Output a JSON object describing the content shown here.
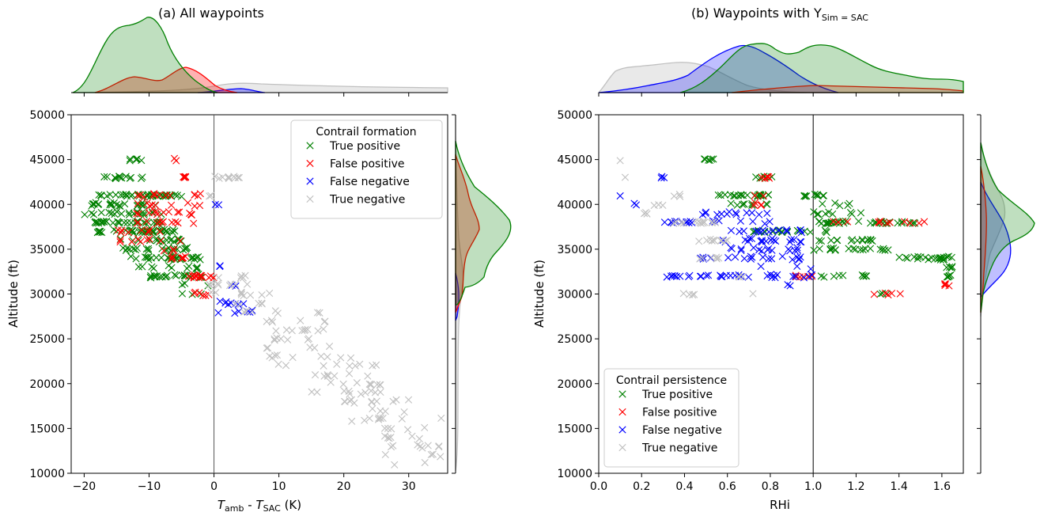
{
  "chart_data": [
    {
      "id": "a",
      "type": "scatter",
      "title": "(a) All waypoints",
      "xlabel_T": "T",
      "xlabel_sub1": "amb",
      "xlabel_mid": " - ",
      "xlabel_sub2": "SAC",
      "xlabel_unit": " (K)",
      "ylabel": "Altitude (ft)",
      "xlim": [
        -22,
        36
      ],
      "ylim": [
        10000,
        50000
      ],
      "xticks": [
        -20,
        -10,
        0,
        10,
        20,
        30
      ],
      "xtick_labels": [
        "−20",
        "−10",
        "0",
        "10",
        "20",
        "30"
      ],
      "yticks": [
        10000,
        15000,
        20000,
        25000,
        30000,
        35000,
        40000,
        45000,
        50000
      ],
      "ytick_labels": [
        "10000",
        "15000",
        "20000",
        "25000",
        "30000",
        "35000",
        "40000",
        "45000",
        "50000"
      ],
      "vline_x": 0,
      "legend": {
        "title": "Contrail formation",
        "placement": "top-right",
        "entries": [
          "True positive",
          "False positive",
          "False negative",
          "True negative"
        ]
      },
      "series_colors": [
        "#008000",
        "#ff0000",
        "#0000ff",
        "#c0c0c0"
      ],
      "clusters": {
        "tp": [
          [
            -13,
            -11,
            45000,
            45000,
            6
          ],
          [
            -17,
            -11,
            43000,
            43000,
            14
          ],
          [
            -19,
            -5,
            41000,
            41000,
            40
          ],
          [
            -20,
            -8,
            39000,
            40000,
            45
          ],
          [
            -19,
            -7,
            38000,
            38000,
            30
          ],
          [
            -18,
            -6,
            36500,
            37000,
            40
          ],
          [
            -15,
            -4,
            35000,
            36000,
            40
          ],
          [
            -13,
            -2,
            33000,
            34500,
            40
          ],
          [
            -11,
            -1,
            32000,
            32500,
            25
          ],
          [
            -5,
            0,
            30000,
            31000,
            6
          ]
        ],
        "fp": [
          [
            -6.5,
            -5,
            45000,
            45000,
            2
          ],
          [
            -5,
            -4,
            43000,
            43000,
            6
          ],
          [
            -12,
            -2,
            40000,
            41000,
            22
          ],
          [
            -12,
            -3,
            38000,
            39000,
            25
          ],
          [
            -15,
            -3,
            36000,
            37000,
            18
          ],
          [
            -8,
            -4,
            34000,
            35000,
            10
          ],
          [
            -4,
            0,
            32000,
            32500,
            14
          ],
          [
            -4,
            0,
            30000,
            30500,
            6
          ]
        ],
        "fn": [
          [
            0,
            1,
            40000,
            40000,
            2
          ],
          [
            0.5,
            2,
            32500,
            33000,
            2
          ],
          [
            0.5,
            6,
            28000,
            31000,
            16
          ]
        ],
        "tn": [
          [
            -1,
            0,
            40000,
            41000,
            2
          ],
          [
            0,
            4,
            43000,
            43000,
            10
          ],
          [
            -1,
            6,
            30000,
            32000,
            20
          ],
          [
            3,
            10,
            27000,
            30000,
            15
          ],
          [
            8,
            18,
            22000,
            28000,
            35
          ],
          [
            15,
            25,
            18000,
            23000,
            30
          ],
          [
            20,
            30,
            15000,
            20000,
            30
          ],
          [
            25,
            35,
            11000,
            16000,
            25
          ]
        ]
      }
    },
    {
      "id": "b",
      "type": "scatter",
      "title_main": "(b) Waypoints with Y",
      "title_sub": "Sim = SAC",
      "xlabel": "RHi",
      "ylabel": "Altitude (ft)",
      "xlim": [
        0.0,
        1.7
      ],
      "ylim": [
        10000,
        50000
      ],
      "xticks": [
        0.0,
        0.2,
        0.4,
        0.6,
        0.8,
        1.0,
        1.2,
        1.4,
        1.6
      ],
      "xtick_labels": [
        "0.0",
        "0.2",
        "0.4",
        "0.6",
        "0.8",
        "1.0",
        "1.2",
        "1.4",
        "1.6"
      ],
      "yticks": [
        10000,
        15000,
        20000,
        25000,
        30000,
        35000,
        40000,
        45000,
        50000
      ],
      "ytick_labels": [
        "10000",
        "15000",
        "20000",
        "25000",
        "30000",
        "35000",
        "40000",
        "45000",
        "50000"
      ],
      "vline_x": 1.0,
      "legend": {
        "title": "Contrail persistence",
        "placement": "lower-left",
        "entries": [
          "True positive",
          "False positive",
          "False negative",
          "True negative"
        ]
      },
      "series_colors": [
        "#008000",
        "#ff0000",
        "#0000ff",
        "#c0c0c0"
      ],
      "clusters": {
        "tp": [
          [
            0.48,
            0.55,
            45000,
            45000,
            6
          ],
          [
            0.72,
            0.84,
            43000,
            43000,
            6
          ],
          [
            0.55,
            0.82,
            41000,
            41000,
            22
          ],
          [
            0.6,
            0.8,
            40000,
            40000,
            10
          ],
          [
            0.95,
            1.05,
            41000,
            41000,
            10
          ],
          [
            1.0,
            1.25,
            39000,
            40000,
            14
          ],
          [
            1.0,
            1.5,
            38000,
            38000,
            35
          ],
          [
            0.7,
            1.1,
            37000,
            37000,
            20
          ],
          [
            1.0,
            1.3,
            36000,
            36000,
            15
          ],
          [
            1.0,
            1.35,
            35000,
            35000,
            20
          ],
          [
            1.38,
            1.65,
            34000,
            34500,
            22
          ],
          [
            1.62,
            1.65,
            32000,
            33500,
            10
          ],
          [
            1.02,
            1.25,
            32000,
            32000,
            10
          ],
          [
            1.3,
            1.35,
            30000,
            30000,
            3
          ]
        ],
        "fp": [
          [
            0.75,
            0.8,
            43000,
            43000,
            6
          ],
          [
            0.72,
            0.78,
            40000,
            41000,
            6
          ],
          [
            1.05,
            1.6,
            38000,
            38000,
            12
          ],
          [
            0.9,
            1.0,
            32000,
            32000,
            6
          ],
          [
            1.28,
            1.42,
            30000,
            30000,
            5
          ],
          [
            1.6,
            1.65,
            31000,
            31500,
            4
          ]
        ],
        "fn": [
          [
            0.1,
            0.1,
            41000,
            41000,
            1
          ],
          [
            0.15,
            0.2,
            40000,
            40000,
            2
          ],
          [
            0.29,
            0.31,
            43000,
            43000,
            3
          ],
          [
            0.3,
            0.45,
            38000,
            38000,
            12
          ],
          [
            0.45,
            0.8,
            38000,
            39000,
            20
          ],
          [
            0.55,
            0.95,
            36000,
            37000,
            35
          ],
          [
            0.6,
            0.95,
            34000,
            35000,
            30
          ],
          [
            0.3,
            0.7,
            32000,
            32000,
            20
          ],
          [
            0.65,
            1.0,
            32000,
            33000,
            15
          ],
          [
            0.45,
            0.55,
            34000,
            34000,
            4
          ],
          [
            0.85,
            0.9,
            31000,
            31000,
            2
          ]
        ],
        "tn": [
          [
            0.1,
            0.1,
            45000,
            45000,
            1
          ],
          [
            0.12,
            0.15,
            43000,
            43000,
            1
          ],
          [
            0.2,
            0.25,
            39000,
            39000,
            3
          ],
          [
            0.25,
            0.3,
            40000,
            40000,
            3
          ],
          [
            0.33,
            0.38,
            41000,
            41000,
            3
          ],
          [
            0.3,
            0.55,
            38000,
            38000,
            14
          ],
          [
            0.45,
            0.6,
            36000,
            36000,
            10
          ],
          [
            0.45,
            0.6,
            34000,
            34000,
            6
          ],
          [
            0.38,
            0.45,
            30000,
            30000,
            4
          ],
          [
            0.7,
            0.72,
            30000,
            30000,
            1
          ],
          [
            0.62,
            0.68,
            32000,
            32000,
            3
          ]
        ]
      }
    }
  ]
}
